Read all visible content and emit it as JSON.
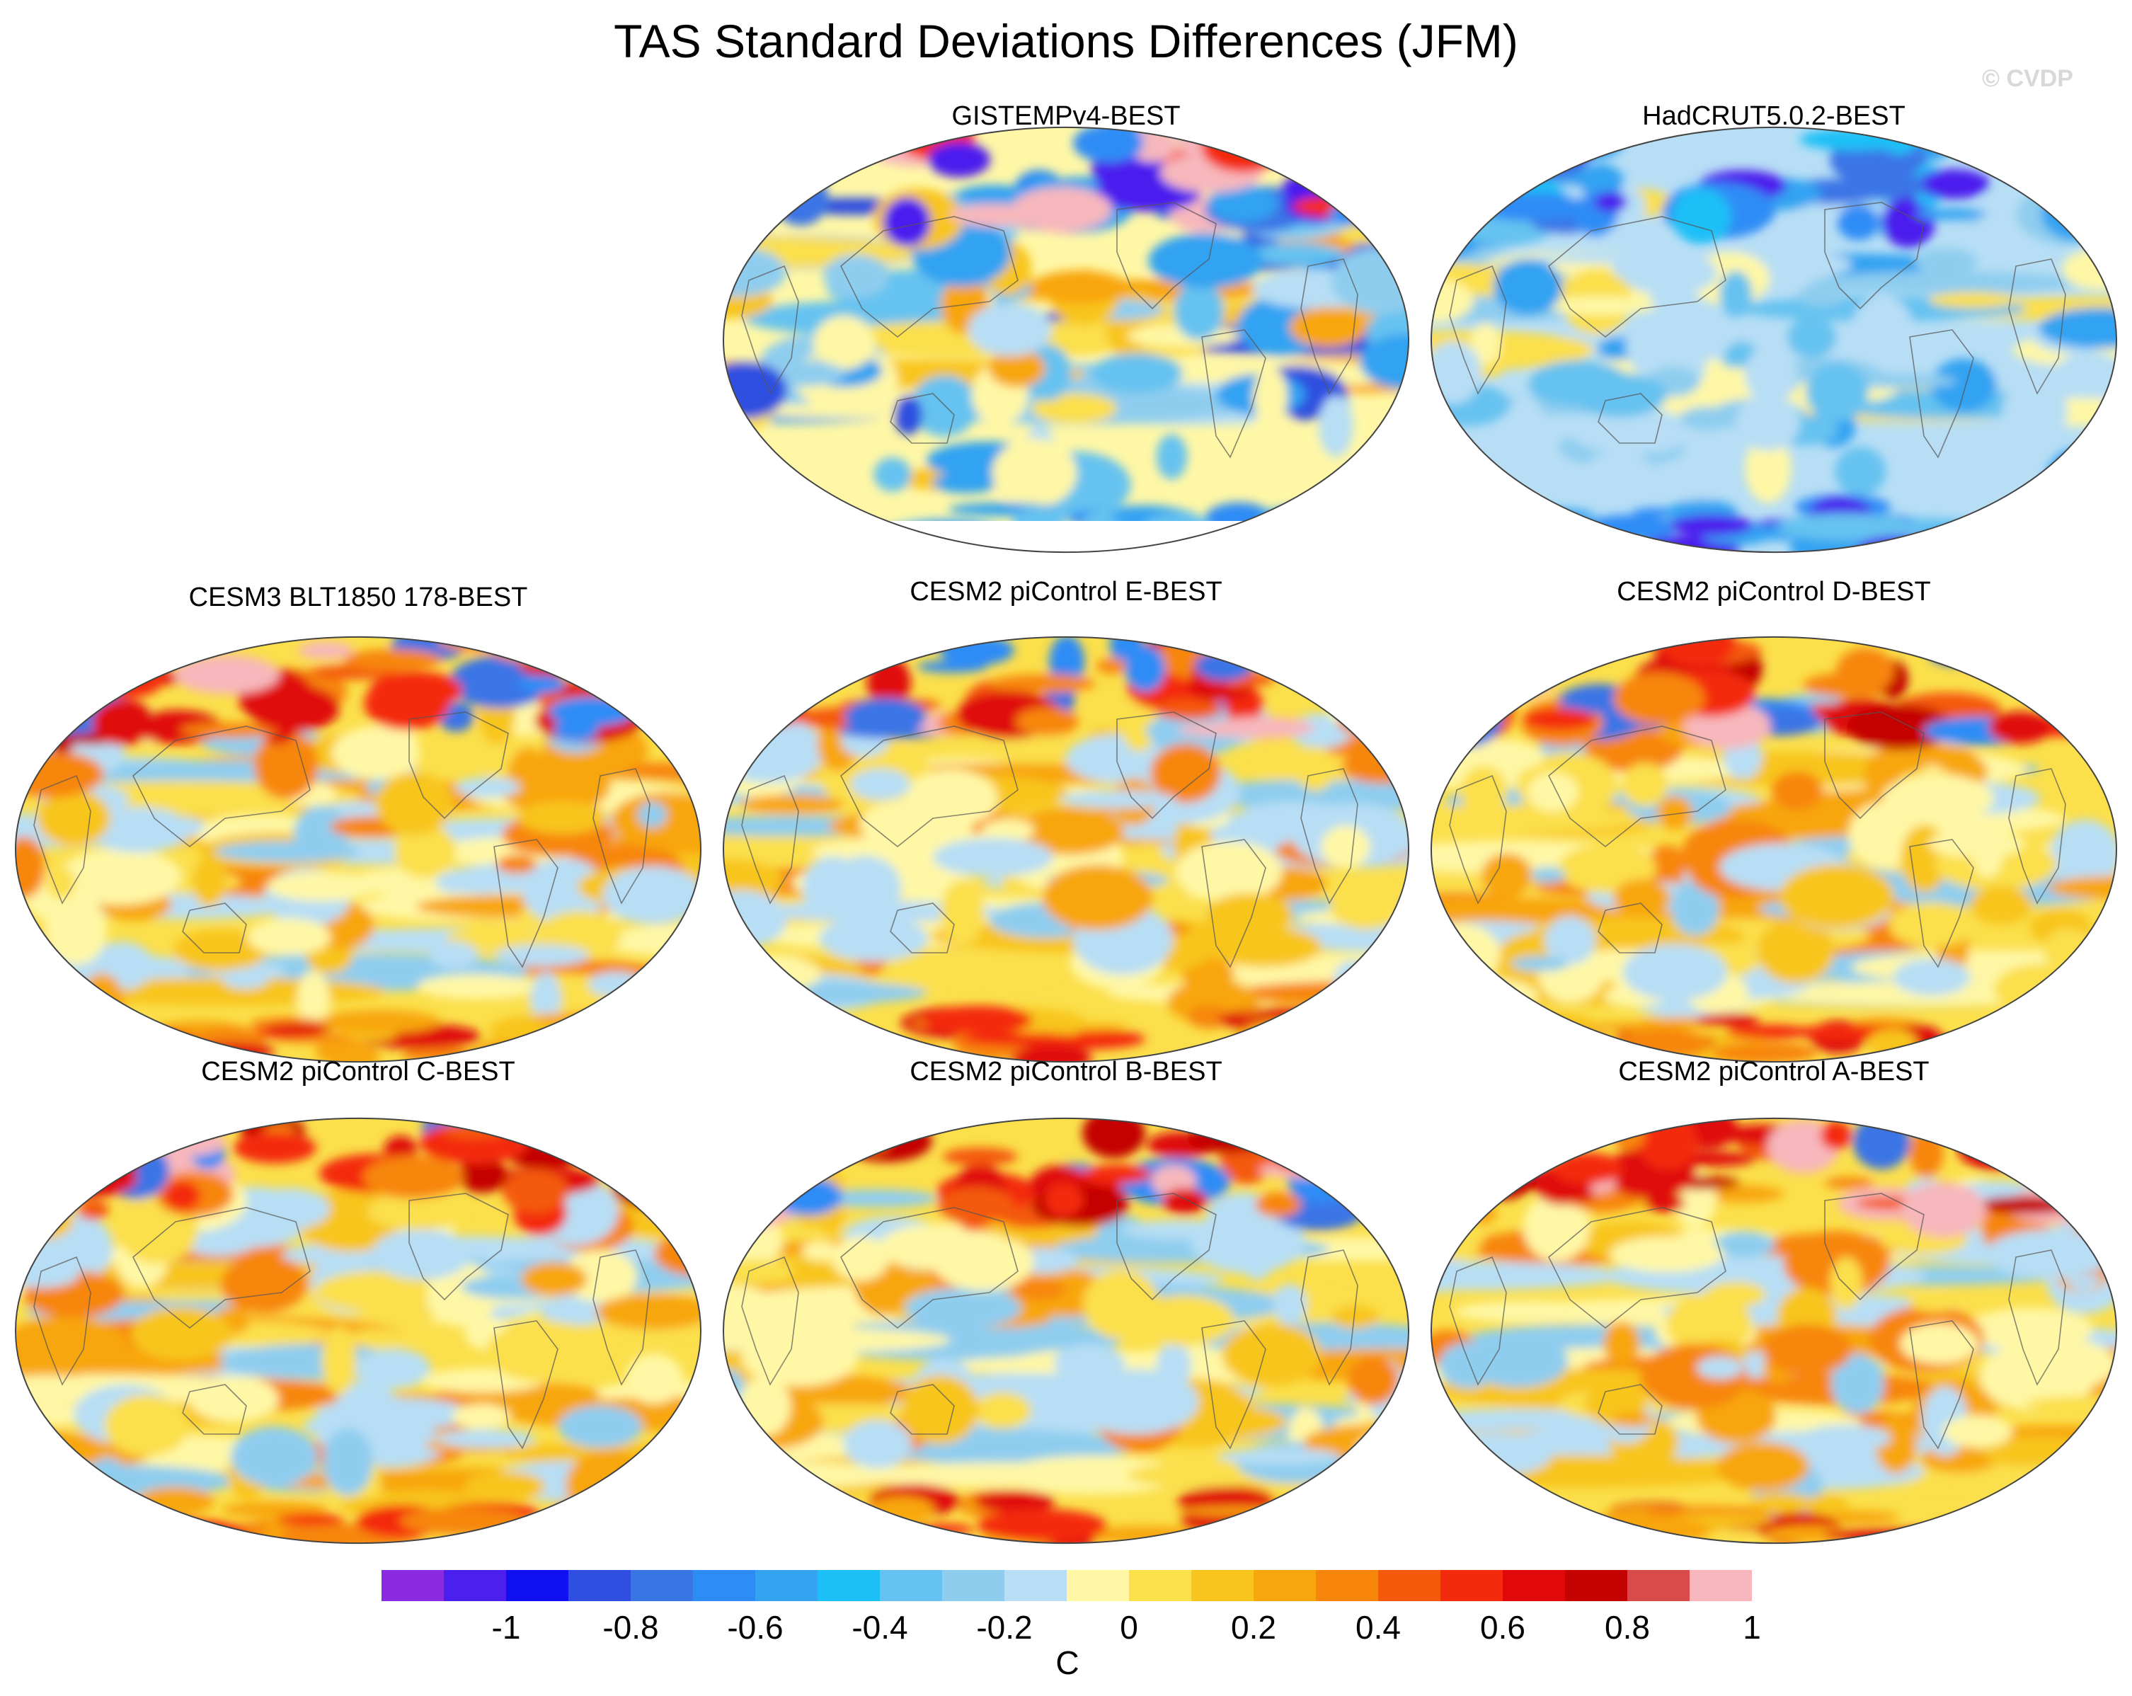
{
  "title": "TAS Standard Deviations Differences (JFM)",
  "credit": "© CVDP",
  "panels": [
    {
      "title": "GISTEMPv4-BEST",
      "style": "gistemp"
    },
    {
      "title": "HadCRUT5.0.2-BEST",
      "style": "hadcrut"
    },
    {
      "title": "CESM3 BLT1850 178-BEST",
      "style": "model"
    },
    {
      "title": "CESM2 piControl E-BEST",
      "style": "model"
    },
    {
      "title": "CESM2 piControl D-BEST",
      "style": "model"
    },
    {
      "title": "CESM2 piControl C-BEST",
      "style": "model"
    },
    {
      "title": "CESM2 piControl B-BEST",
      "style": "model"
    },
    {
      "title": "CESM2 piControl A-BEST",
      "style": "model"
    }
  ],
  "colorbar": {
    "unit": "C",
    "tick_labels": [
      "-1",
      "-0.8",
      "-0.6",
      "-0.4",
      "-0.2",
      "0",
      "0.2",
      "0.4",
      "0.6",
      "0.8",
      "1"
    ],
    "tick_values": [
      -1,
      -0.8,
      -0.6,
      -0.4,
      -0.2,
      0,
      0.2,
      0.4,
      0.6,
      0.8,
      1
    ],
    "colors": [
      "#8a2be2",
      "#4b1fee",
      "#1010f0",
      "#2f4fe0",
      "#3a75e6",
      "#2d8cf6",
      "#33a3f2",
      "#1cc0f7",
      "#66c2f0",
      "#8fcdef",
      "#b7def5",
      "#fff7a6",
      "#fbdf4b",
      "#f8c51e",
      "#f8a60e",
      "#f7860a",
      "#f45a0a",
      "#f42a0c",
      "#e00808",
      "#c40202",
      "#d94a4a",
      "#f7b7bc"
    ]
  }
}
